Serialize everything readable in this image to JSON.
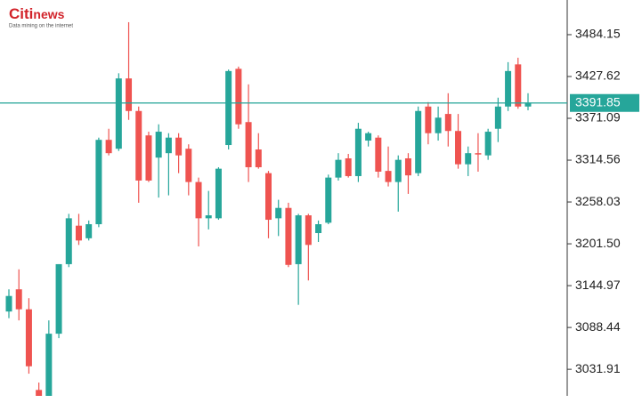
{
  "logo": {
    "parts": [
      "Citi",
      "news"
    ],
    "tagline": "Data mining on the internet"
  },
  "chart_data": {
    "type": "candlestick",
    "open": [
      3110,
      3140,
      3113,
      3004,
      2996,
      3080,
      3174,
      3226,
      3209,
      3228,
      3342,
      3330,
      3425,
      3381,
      3348,
      3318,
      3324,
      3345,
      3330,
      3285,
      3236,
      3236,
      3335,
      3438,
      3366,
      3329,
      3297,
      3236,
      3250,
      3174,
      3240,
      3216,
      3230,
      3291,
      3317,
      3293,
      3341,
      3345,
      3300,
      3285,
      3317,
      3297,
      3387,
      3351,
      3377,
      3354,
      3309,
      3324,
      3321,
      3357,
      3387,
      3444,
      3387
    ],
    "high": [
      3140,
      3167,
      3128,
      3014,
      3098,
      3174,
      3242,
      3242,
      3233,
      3345,
      3357,
      3432,
      3501,
      3387,
      3353,
      3363,
      3351,
      3351,
      3336,
      3291,
      3273,
      3305,
      3437,
      3441,
      3417,
      3351,
      3300,
      3261,
      3257,
      3242,
      3242,
      3233,
      3295,
      3324,
      3323,
      3365,
      3353,
      3348,
      3333,
      3321,
      3324,
      3387,
      3393,
      3387,
      3405,
      3377,
      3333,
      3351,
      3357,
      3399,
      3447,
      3453,
      3405
    ],
    "low": [
      3101,
      3098,
      3026,
      2996,
      2996,
      3074,
      3170,
      3200,
      3206,
      3224,
      3321,
      3327,
      3369,
      3257,
      3285,
      3264,
      3267,
      3297,
      3267,
      3198,
      3221,
      3234,
      3329,
      3357,
      3285,
      3303,
      3209,
      3212,
      3170,
      3119,
      3152,
      3204,
      3228,
      3287,
      3291,
      3285,
      3333,
      3291,
      3279,
      3245,
      3269,
      3293,
      3336,
      3341,
      3333,
      3303,
      3293,
      3299,
      3315,
      3339,
      3381,
      3384,
      3382
    ],
    "close": [
      3131,
      3113,
      3036,
      2996,
      3080,
      3174,
      3236,
      3206,
      3228,
      3342,
      3324,
      3425,
      3381,
      3287,
      3287,
      3353,
      3345,
      3321,
      3285,
      3236,
      3240,
      3303,
      3435,
      3363,
      3305,
      3305,
      3234,
      3250,
      3173,
      3240,
      3200,
      3228,
      3291,
      3315,
      3293,
      3357,
      3351,
      3299,
      3285,
      3315,
      3294,
      3381,
      3351,
      3372,
      3354,
      3309,
      3324,
      3323,
      3353,
      3387,
      3435,
      3387,
      3391.85
    ],
    "up_color": "#26a69a",
    "down_color": "#ef5350",
    "ylim": [
      2996,
      3531
    ],
    "yticks": [
      3031.91,
      3088.44,
      3144.97,
      {
        "value": 3201.5,
        "label": "3201.50"
      },
      3258.03,
      3314.56,
      3371.09,
      3427.62,
      3484.15
    ],
    "last_price": {
      "value": 3391.85,
      "color": "#26a69a"
    }
  }
}
